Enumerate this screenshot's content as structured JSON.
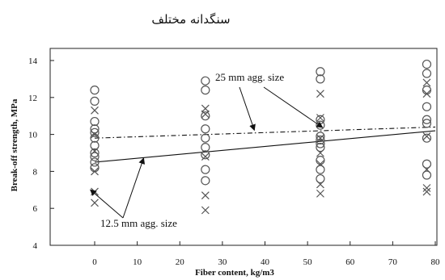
{
  "title": "سنگدانه مختلف",
  "chart_data": {
    "type": "scatter",
    "xlabel": "Fiber content, kg/m3",
    "ylabel": "Break-off strength, MPa",
    "xlim": [
      -10,
      80
    ],
    "ylim": [
      4,
      14
    ],
    "x_ticks": [
      0,
      10,
      20,
      30,
      40,
      50,
      60,
      70,
      80
    ],
    "x_tick_labels": [
      "0",
      "10",
      "20",
      "30",
      "40",
      "50",
      "60",
      "70",
      "80"
    ],
    "y_ticks": [
      4,
      6,
      8,
      10,
      12,
      14
    ],
    "y_tick_labels": [
      "4",
      "6",
      "8",
      "10",
      "12",
      "14"
    ],
    "grid": false,
    "series": [
      {
        "name": "25 mm agg. size",
        "marker": "circle",
        "color": "#555555",
        "points": [
          [
            0,
            12.4
          ],
          [
            0,
            11.8
          ],
          [
            0,
            10.7
          ],
          [
            0,
            10.3
          ],
          [
            0,
            10.1
          ],
          [
            0,
            9.8
          ],
          [
            0,
            9.4
          ],
          [
            0,
            9.0
          ],
          [
            0,
            8.8
          ],
          [
            0,
            8.5
          ],
          [
            0,
            8.2
          ],
          [
            26,
            12.9
          ],
          [
            26,
            12.4
          ],
          [
            26,
            11.0
          ],
          [
            26,
            10.3
          ],
          [
            26,
            9.8
          ],
          [
            26,
            9.3
          ],
          [
            26,
            8.9
          ],
          [
            26,
            8.1
          ],
          [
            26,
            7.5
          ],
          [
            53,
            13.4
          ],
          [
            53,
            13.0
          ],
          [
            53,
            10.8
          ],
          [
            53,
            10.5
          ],
          [
            53,
            9.9
          ],
          [
            53,
            9.7
          ],
          [
            53,
            9.5
          ],
          [
            53,
            9.3
          ],
          [
            53,
            8.6
          ],
          [
            53,
            8.1
          ],
          [
            53,
            7.6
          ],
          [
            78,
            13.8
          ],
          [
            78,
            13.3
          ],
          [
            78,
            12.4
          ],
          [
            78,
            11.5
          ],
          [
            78,
            10.8
          ],
          [
            78,
            10.6
          ],
          [
            78,
            9.8
          ],
          [
            78,
            8.4
          ],
          [
            78,
            7.8
          ]
        ]
      },
      {
        "name": "12.5 mm agg. size",
        "marker": "cross",
        "color": "#555555",
        "points": [
          [
            0,
            11.3
          ],
          [
            0,
            10.0
          ],
          [
            0,
            9.1
          ],
          [
            0,
            8.0
          ],
          [
            0,
            6.9
          ],
          [
            0,
            6.3
          ],
          [
            26,
            11.4
          ],
          [
            26,
            11.1
          ],
          [
            26,
            8.8
          ],
          [
            26,
            6.7
          ],
          [
            26,
            5.9
          ],
          [
            53,
            12.2
          ],
          [
            53,
            10.9
          ],
          [
            53,
            9.8
          ],
          [
            53,
            9.0
          ],
          [
            53,
            8.4
          ],
          [
            53,
            7.3
          ],
          [
            53,
            6.8
          ],
          [
            78,
            12.8
          ],
          [
            78,
            12.2
          ],
          [
            78,
            9.9
          ],
          [
            78,
            8.1
          ],
          [
            78,
            7.1
          ],
          [
            78,
            6.9
          ]
        ]
      }
    ],
    "trendlines": [
      {
        "name": "25 mm agg. size",
        "style": "dash-dot",
        "points": [
          [
            0,
            9.8
          ],
          [
            80,
            10.4
          ]
        ]
      },
      {
        "name": "12.5 mm agg. size",
        "style": "solid",
        "points": [
          [
            0,
            8.5
          ],
          [
            80,
            10.2
          ]
        ]
      }
    ],
    "annotations": [
      {
        "text": "25 mm agg. size",
        "target": "25 mm agg. size"
      },
      {
        "text": "12.5 mm agg. size",
        "target": "12.5 mm agg. size"
      }
    ]
  }
}
